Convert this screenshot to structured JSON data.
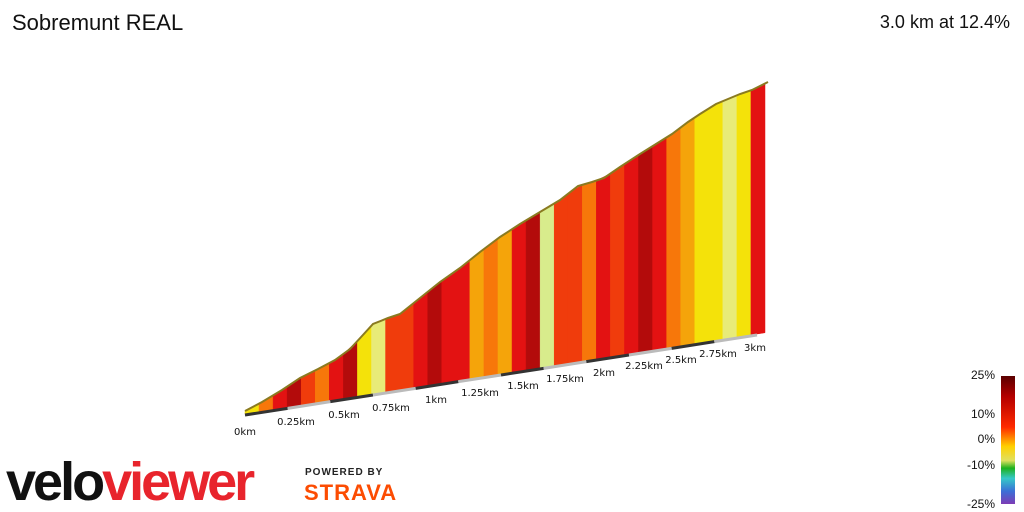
{
  "header": {
    "title": "Sobremunt REAL",
    "summary": "3.0 km at 12.4%"
  },
  "legend": {
    "labels": [
      "25%",
      "10%",
      "0%",
      "-10%",
      "-25%"
    ]
  },
  "branding": {
    "logo_part1": "velo",
    "logo_part2": "viewer",
    "powered_by": "POWERED BY",
    "strava": "STRAVA"
  },
  "chart_data": {
    "type": "area",
    "title": "Sobremunt REAL",
    "subtitle": "3.0 km at 12.4%",
    "x_unit": "km",
    "x_ticks": [
      "0km",
      "0.25km",
      "0.5km",
      "0.75km",
      "1km",
      "1.25km",
      "1.5km",
      "1.75km",
      "2km",
      "2.25km",
      "2.5km",
      "2.75km",
      "3km"
    ],
    "xlim": [
      0,
      3.0
    ],
    "gradient_scale": {
      "min": -25,
      "max": 25,
      "labels": [
        "25%",
        "10%",
        "0%",
        "-10%",
        "-25%"
      ]
    },
    "colors": {
      "darkred": "#b30b0b",
      "red": "#e31212",
      "redorange": "#f03c0c",
      "orange": "#f7770a",
      "amber": "#f5a40a",
      "yellow": "#f4e20a",
      "paleyellow": "#e8eb78",
      "lightgreen": "#d8ec8c"
    },
    "segments_gradient_color": [
      "yellow",
      "orange",
      "red",
      "darkred",
      "redorange",
      "orange",
      "red",
      "darkred",
      "yellow",
      "paleyellow",
      "redorange",
      "redorange",
      "red",
      "darkred",
      "red",
      "red",
      "amber",
      "orange",
      "amber",
      "red",
      "darkred",
      "lightgreen",
      "redorange",
      "redorange",
      "orange",
      "red",
      "redorange",
      "red",
      "darkred",
      "red",
      "orange",
      "amber",
      "yellow",
      "yellow",
      "paleyellow",
      "yellow",
      "red"
    ]
  }
}
